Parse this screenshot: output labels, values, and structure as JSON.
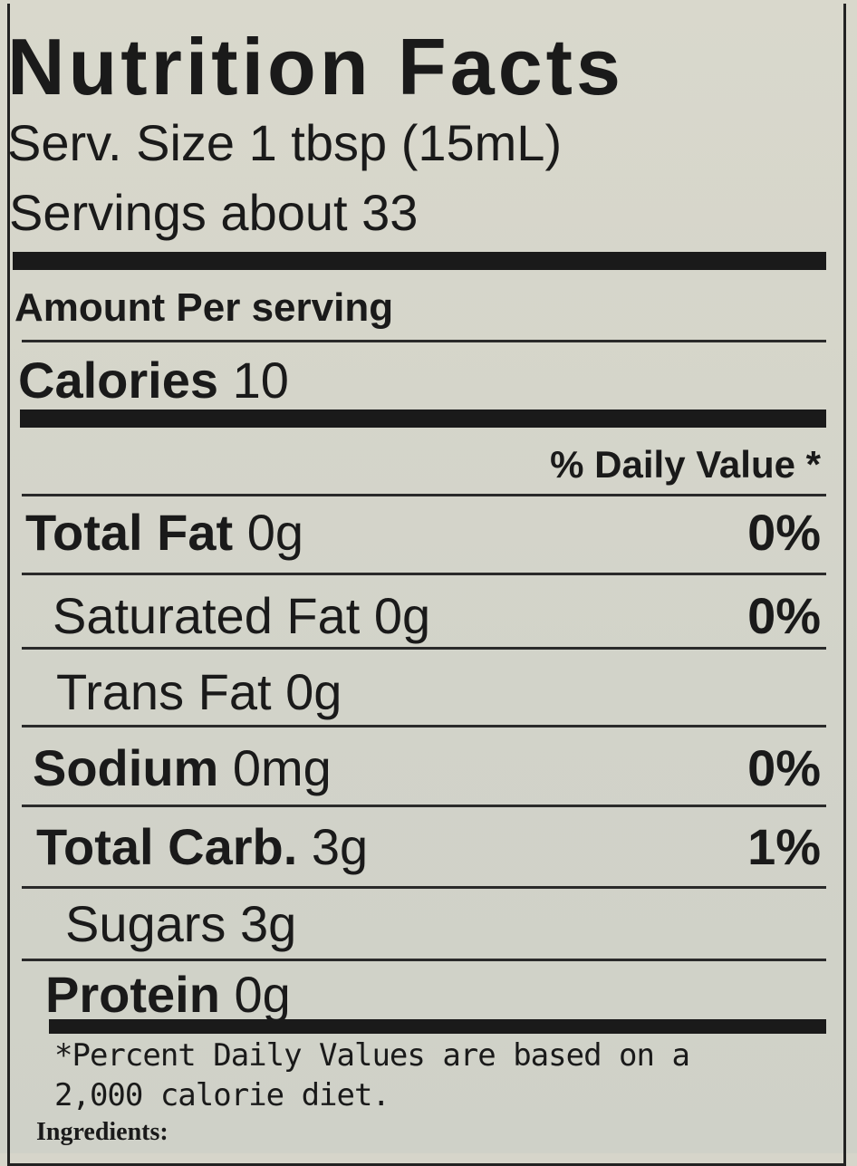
{
  "header": {
    "title": "Nutrition Facts",
    "serving_size": "Serv. Size 1 tbsp (15mL)",
    "servings": "Servings about 33"
  },
  "amount_per": "Amount Per serving",
  "calories": {
    "label": "Calories",
    "amount": "10"
  },
  "dv_heading": "% Daily Value *",
  "rows": [
    {
      "name": "Total Fat",
      "amount": "0g",
      "dv": "0%"
    },
    {
      "name": "Saturated Fat",
      "amount": "0g",
      "dv": "0%"
    },
    {
      "name": "Trans Fat",
      "amount": "0g"
    },
    {
      "name": "Sodium",
      "amount": "0mg",
      "dv": "0%"
    },
    {
      "name": "Total Carb.",
      "amount": "3g",
      "dv": "1%"
    },
    {
      "name": "Sugars",
      "amount": "3g"
    },
    {
      "name": "Protein",
      "amount": "0g"
    }
  ],
  "footnote": [
    "*Percent Daily Values are based on a",
    "2,000 calorie diet."
  ],
  "ingredients": "Ingredients:"
}
